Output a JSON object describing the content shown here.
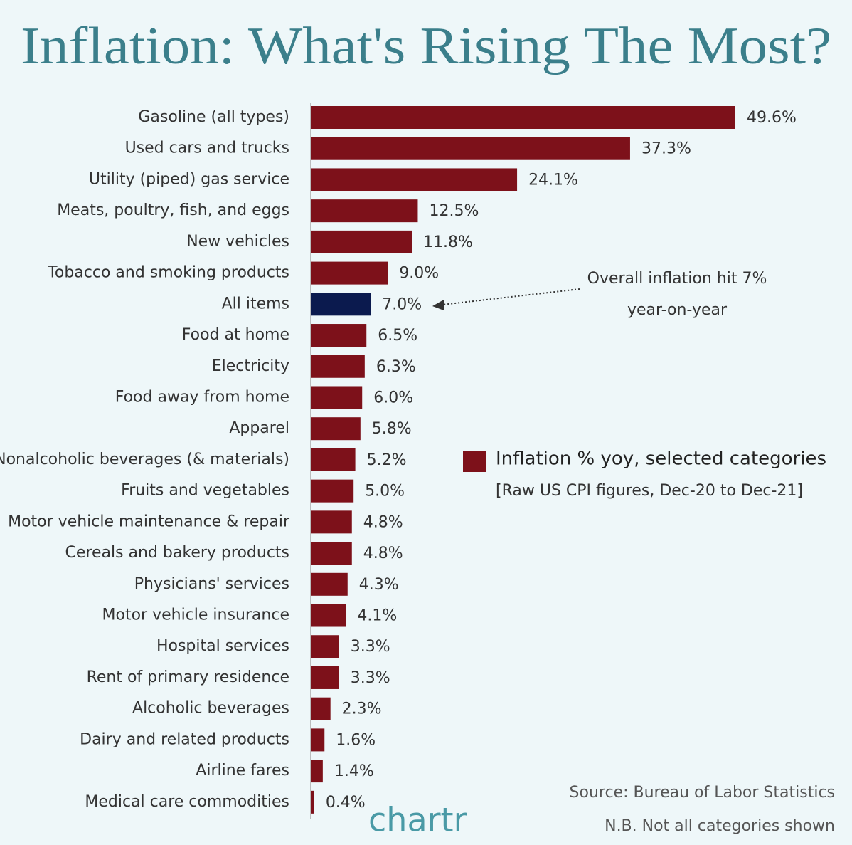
{
  "chart_data": {
    "type": "bar",
    "orientation": "horizontal",
    "title": "Inflation: What's Rising The Most?",
    "categories": [
      "Gasoline (all types)",
      "Used cars and trucks",
      "Utility (piped) gas service",
      "Meats, poultry, fish, and eggs",
      "New vehicles",
      "Tobacco and smoking products",
      "All items",
      "Food at home",
      "Electricity",
      "Food away from home",
      "Apparel",
      "Nonalcoholic beverages (& materials)",
      "Fruits and vegetables",
      "Motor vehicle maintenance & repair",
      "Cereals and bakery products",
      "Physicians' services",
      "Motor vehicle insurance",
      "Hospital services",
      "Rent of primary residence",
      "Alcoholic beverages",
      "Dairy and related products",
      "Airline fares",
      "Medical care commodities"
    ],
    "values": [
      49.6,
      37.3,
      24.1,
      12.5,
      11.8,
      9.0,
      7.0,
      6.5,
      6.3,
      6.0,
      5.8,
      5.2,
      5.0,
      4.8,
      4.8,
      4.3,
      4.1,
      3.3,
      3.3,
      2.3,
      1.6,
      1.4,
      0.4
    ],
    "value_labels": [
      "49.6%",
      "37.3%",
      "24.1%",
      "12.5%",
      "11.8%",
      "9.0%",
      "7.0%",
      "6.5%",
      "6.3%",
      "6.0%",
      "5.8%",
      "5.2%",
      "5.0%",
      "4.8%",
      "4.8%",
      "4.3%",
      "4.1%",
      "3.3%",
      "3.3%",
      "2.3%",
      "1.6%",
      "1.4%",
      "0.4%"
    ],
    "colors": [
      "#7d111a",
      "#7d111a",
      "#7d111a",
      "#7d111a",
      "#7d111a",
      "#7d111a",
      "#0b1a4e",
      "#7d111a",
      "#7d111a",
      "#7d111a",
      "#7d111a",
      "#7d111a",
      "#7d111a",
      "#7d111a",
      "#7d111a",
      "#7d111a",
      "#7d111a",
      "#7d111a",
      "#7d111a",
      "#7d111a",
      "#7d111a",
      "#7d111a",
      "#7d111a"
    ],
    "legend_label": "Inflation % yoy, selected categories",
    "legend_color": "#7d111a",
    "legend_note": "[Raw US CPI figures, Dec-20 to Dec-21]",
    "annotation": [
      "Overall inflation hit 7%",
      "year-on-year"
    ],
    "source": "Source: Bureau of Labor Statistics",
    "note": "N.B. Not all categories shown",
    "brand": "chartr"
  }
}
